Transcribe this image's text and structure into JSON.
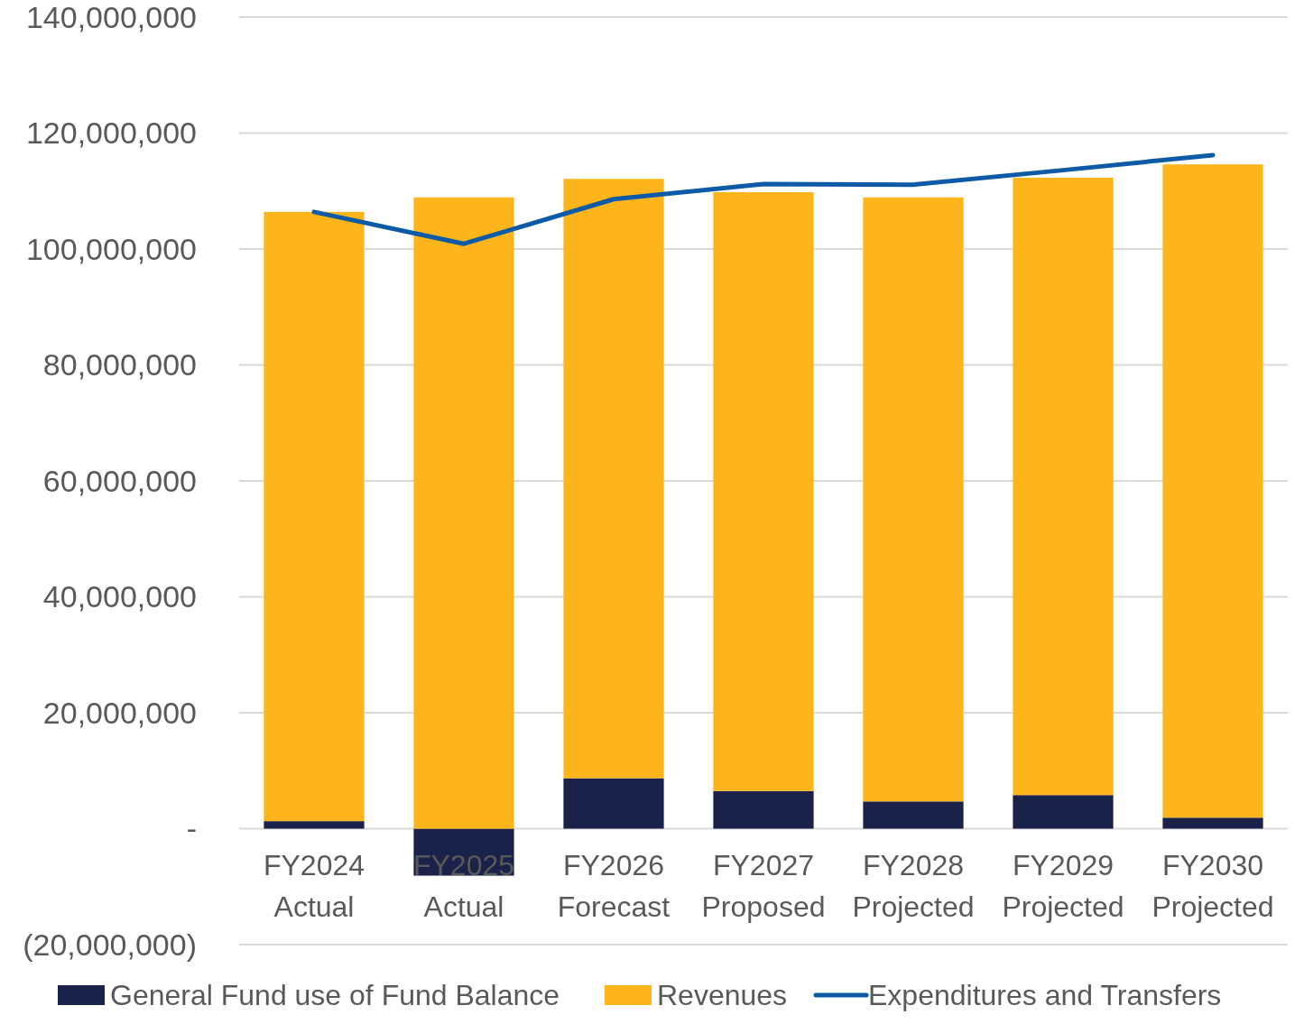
{
  "chart_data": {
    "type": "bar",
    "stacked": true,
    "categories": [
      "FY2024 Actual",
      "FY2025 Actual",
      "FY2026 Forecast",
      "FY2027 Proposed",
      "FY2028 Projected",
      "FY2029 Projected",
      "FY2030 Projected"
    ],
    "series": [
      {
        "name": "General Fund use of Fund Balance",
        "color": "#1a2249",
        "values": [
          1300000,
          -8100000,
          8700000,
          6500000,
          4700000,
          5800000,
          1900000
        ]
      },
      {
        "name": "Revenues",
        "color": "#fdb51b",
        "values": [
          105100000,
          108900000,
          103400000,
          103300000,
          104200000,
          106500000,
          112700000
        ]
      },
      {
        "name": "Expenditures and Transfers",
        "type": "line",
        "color": "#0d5aa7",
        "values": [
          106400000,
          100900000,
          108600000,
          111200000,
          111100000,
          113600000,
          116200000
        ]
      }
    ],
    "ylim": [
      -20000000,
      140000000
    ],
    "yticks": [
      {
        "value": -20000000,
        "label": "(20,000,000)"
      },
      {
        "value": 0,
        "label": "-"
      },
      {
        "value": 20000000,
        "label": "20,000,000"
      },
      {
        "value": 40000000,
        "label": "40,000,000"
      },
      {
        "value": 60000000,
        "label": "60,000,000"
      },
      {
        "value": 80000000,
        "label": "80,000,000"
      },
      {
        "value": 100000000,
        "label": "100,000,000"
      },
      {
        "value": 120000000,
        "label": "120,000,000"
      },
      {
        "value": 140000000,
        "label": "140,000,000"
      }
    ],
    "grid": "y",
    "legend": "bottom",
    "marker": "none"
  }
}
